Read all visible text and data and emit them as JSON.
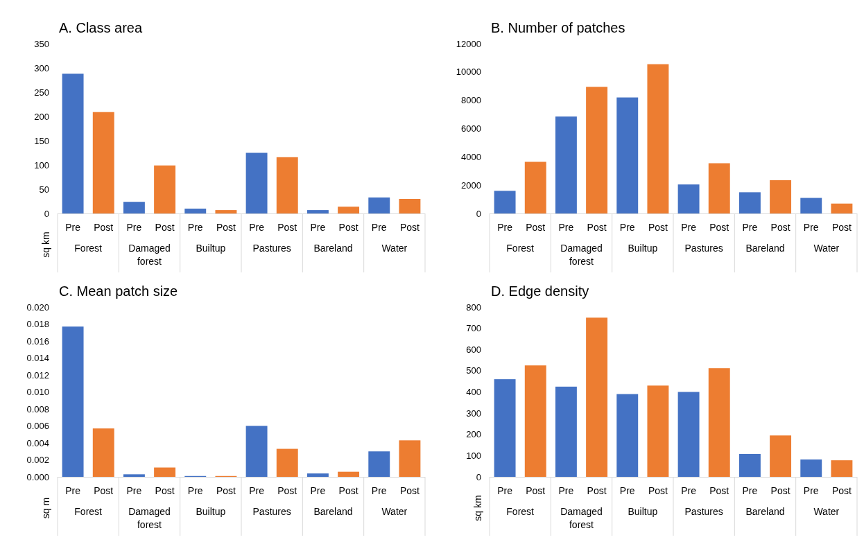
{
  "chart_data": [
    {
      "type": "bar",
      "title": "A. Class area",
      "ylabel": "sq km",
      "categories": [
        "Forest",
        "Damaged forest",
        "Builtup",
        "Pastures",
        "Bareland",
        "Water"
      ],
      "ylim": [
        0,
        350
      ],
      "yticks": [
        0,
        50,
        100,
        150,
        200,
        250,
        300,
        350
      ],
      "grid": false,
      "legend": false,
      "series": [
        {
          "name": "Pre",
          "color": "#4472c4",
          "values": [
            288,
            24,
            10,
            125,
            7,
            33
          ]
        },
        {
          "name": "Post",
          "color": "#ed7d31",
          "values": [
            209,
            99,
            7,
            116,
            14,
            30
          ]
        }
      ]
    },
    {
      "type": "bar",
      "title": "B. Number of patches",
      "categories": [
        "Forest",
        "Damaged forest",
        "Builtup",
        "Pastures",
        "Bareland",
        "Water"
      ],
      "ylim": [
        0,
        12000
      ],
      "yticks": [
        0,
        2000,
        4000,
        6000,
        8000,
        10000,
        12000
      ],
      "grid": false,
      "legend": false,
      "series": [
        {
          "name": "Pre",
          "color": "#4472c4",
          "values": [
            1600,
            6850,
            8200,
            2050,
            1500,
            1100
          ]
        },
        {
          "name": "Post",
          "color": "#ed7d31",
          "values": [
            3650,
            8950,
            10550,
            3550,
            2350,
            700
          ]
        }
      ]
    },
    {
      "type": "bar",
      "title": "C. Mean patch size",
      "ylabel": "sq m",
      "categories": [
        "Forest",
        "Damaged forest",
        "Builtup",
        "Pastures",
        "Bareland",
        "Water"
      ],
      "ylim": [
        0,
        0.02
      ],
      "yticks": [
        {
          "value": 0,
          "label": "0.000"
        },
        {
          "value": 0.002,
          "label": "0.002"
        },
        {
          "value": 0.004,
          "label": "0.004"
        },
        {
          "value": 0.006,
          "label": "0.006"
        },
        {
          "value": 0.008,
          "label": "0.008"
        },
        {
          "value": 0.01,
          "label": "0.010"
        },
        {
          "value": 0.012,
          "label": "0.012"
        },
        {
          "value": 0.014,
          "label": "0.014"
        },
        {
          "value": 0.016,
          "label": "0.016"
        },
        {
          "value": 0.018,
          "label": "0.018"
        },
        {
          "value": 0.02,
          "label": "0.020"
        }
      ],
      "grid": false,
      "legend": false,
      "series": [
        {
          "name": "Pre",
          "color": "#4472c4",
          "values": [
            0.0177,
            0.0003,
            0.0001,
            0.006,
            0.0004,
            0.003
          ]
        },
        {
          "name": "Post",
          "color": "#ed7d31",
          "values": [
            0.0057,
            0.0011,
            0.0001,
            0.0033,
            0.0006,
            0.0043
          ]
        }
      ]
    },
    {
      "type": "bar",
      "title": "D. Edge density",
      "ylabel": "sq km",
      "categories": [
        "Forest",
        "Damaged forest",
        "Builtup",
        "Pastures",
        "Bareland",
        "Water"
      ],
      "ylim": [
        0,
        800
      ],
      "yticks": [
        0,
        100,
        200,
        300,
        400,
        500,
        600,
        700,
        800
      ],
      "grid": false,
      "legend": false,
      "series": [
        {
          "name": "Pre",
          "color": "#4472c4",
          "values": [
            460,
            425,
            390,
            400,
            108,
            82
          ]
        },
        {
          "name": "Post",
          "color": "#ed7d31",
          "values": [
            525,
            750,
            430,
            512,
            195,
            78
          ]
        }
      ]
    }
  ]
}
